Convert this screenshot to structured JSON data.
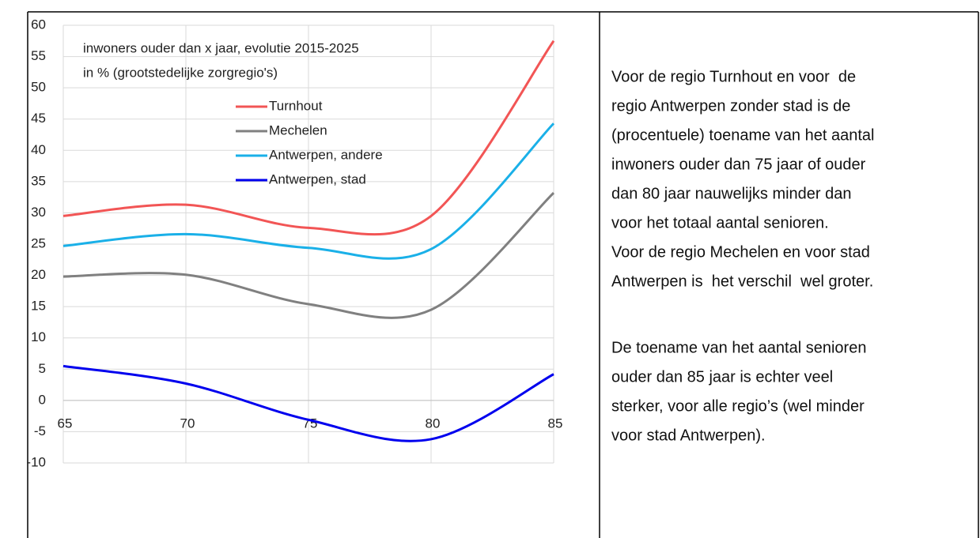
{
  "chart_data": {
    "type": "line",
    "title": [
      "inwoners ouder dan x jaar, evolutie 2015-2025",
      "in % (grootstedelijke zorgregio's)"
    ],
    "x": [
      65,
      70,
      75,
      80,
      85
    ],
    "xlim": [
      65,
      85
    ],
    "xticks": [
      65,
      70,
      75,
      80,
      85
    ],
    "ylim": [
      -10,
      60
    ],
    "yticks": [
      -10,
      -5,
      0,
      5,
      10,
      15,
      20,
      25,
      30,
      35,
      40,
      45,
      50,
      55,
      60
    ],
    "grid": true,
    "smooth": true,
    "series": [
      {
        "name": "Turnhout",
        "color": "#f25555",
        "values": [
          29.5,
          31.3,
          27.6,
          29.5,
          57.5
        ]
      },
      {
        "name": "Mechelen",
        "color": "#808080",
        "values": [
          19.8,
          20.1,
          15.4,
          14.5,
          33.2
        ]
      },
      {
        "name": "Antwerpen, andere",
        "color": "#1ab0e8",
        "values": [
          24.7,
          26.6,
          24.4,
          24.2,
          44.3
        ]
      },
      {
        "name": "Antwerpen, stad",
        "color": "#0000ee",
        "values": [
          5.5,
          2.7,
          -3.1,
          -6.2,
          4.2
        ]
      }
    ]
  },
  "text": {
    "paragraphs": [
      [
        "Voor de regio Turnhout en voor  de",
        "regio Antwerpen zonder stad is de",
        "(procentuele) toename van het aantal",
        "inwoners ouder dan 75 jaar of ouder",
        "dan 80 jaar nauwelijks minder dan",
        "voor het totaal aantal senioren.",
        "Voor de regio Mechelen en voor stad",
        "Antwerpen is  het verschil  wel groter."
      ],
      [
        "De toename van het aantal senioren",
        "ouder dan 85 jaar is echter veel",
        "sterker, voor alle regio’s (wel minder",
        "voor stad Antwerpen)."
      ]
    ]
  }
}
